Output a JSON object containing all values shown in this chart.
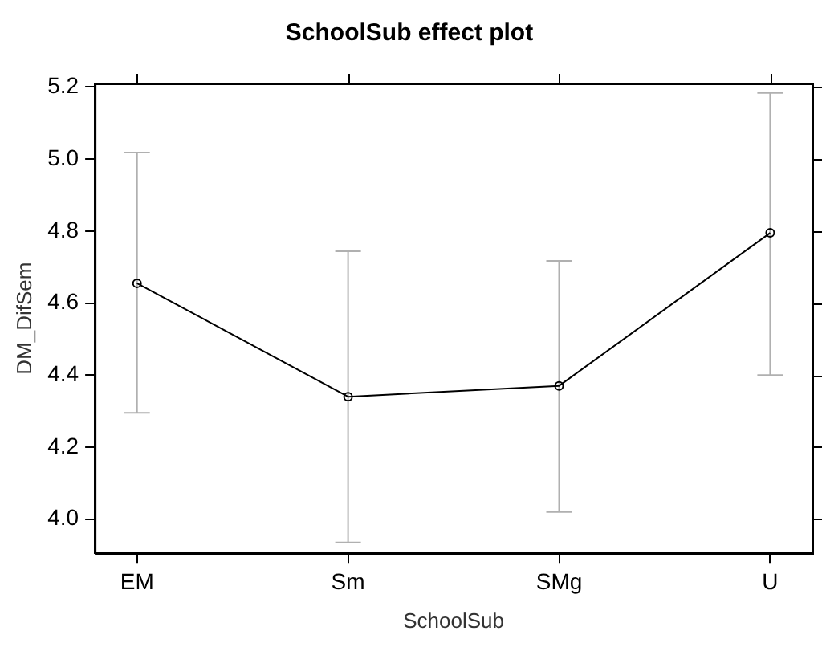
{
  "chart_data": {
    "type": "line",
    "title": "SchoolSub effect plot",
    "xlabel": "SchoolSub",
    "ylabel": "DM_DifSem",
    "categories": [
      "EM",
      "Sm",
      "SMg",
      "U"
    ],
    "series": [
      {
        "color": "#000000",
        "values": [
          4.655,
          4.34,
          4.37,
          4.795
        ],
        "errors": [
          [
            4.295,
            5.018
          ],
          [
            3.935,
            4.744
          ],
          [
            4.02,
            4.717
          ],
          [
            4.4,
            5.184
          ]
        ]
      }
    ],
    "ylim": [
      3.905,
      5.21
    ],
    "yticks": [
      {
        "value": 4.0,
        "label": "4.0"
      },
      {
        "value": 4.2,
        "label": "4.2"
      },
      {
        "value": 4.4,
        "label": "4.4"
      },
      {
        "value": 4.6,
        "label": "4.6"
      },
      {
        "value": 4.8,
        "label": "4.8"
      },
      {
        "value": 5.0,
        "label": "5.0"
      },
      {
        "value": 5.2,
        "label": "5.2"
      }
    ],
    "grid": false,
    "legend": false,
    "marker": "circle",
    "line_style": "solid"
  }
}
